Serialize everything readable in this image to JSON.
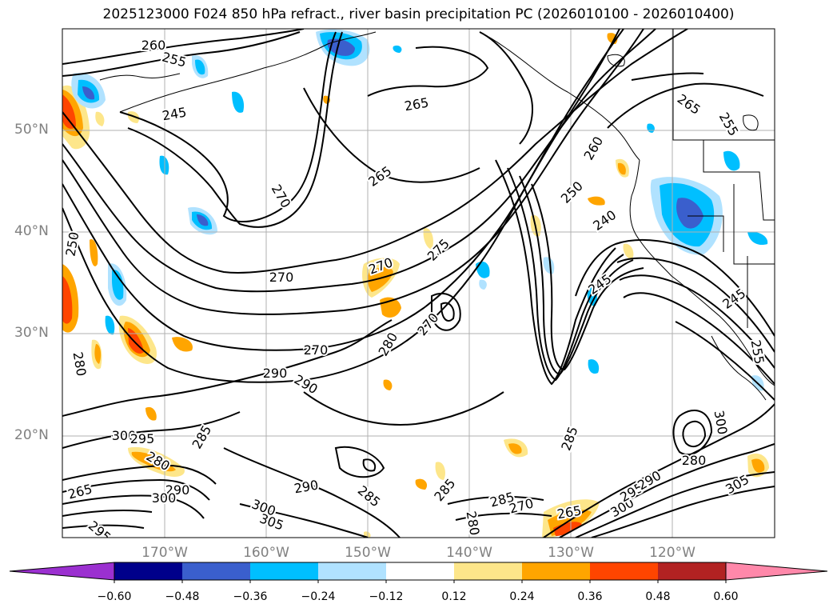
{
  "title": "2025123000 F024 850 hPa refract., river basin precipitation PC (2026010100 - 2026010400)",
  "latitude_labels": [
    "50°N",
    "40°N",
    "30°N",
    "20°N"
  ],
  "longitude_labels": [
    "170°W",
    "160°W",
    "150°W",
    "140°W",
    "130°W",
    "120°W"
  ],
  "contour_labels": [
    "260",
    "255",
    "245",
    "265",
    "265",
    "265",
    "255",
    "270",
    "270",
    "275",
    "270",
    "260",
    "250",
    "240",
    "245",
    "245",
    "255",
    "270",
    "280",
    "290",
    "290",
    "270",
    "280",
    "300",
    "295",
    "285",
    "280",
    "290",
    "300",
    "290",
    "300",
    "305",
    "285",
    "285",
    "280",
    "285",
    "270",
    "265",
    "300",
    "295",
    "290",
    "285",
    "280",
    "300",
    "305",
    "265",
    "295",
    "250"
  ],
  "colorbar": {
    "ticks": [
      "−0.60",
      "−0.48",
      "−0.36",
      "−0.24",
      "−0.12",
      "0.12",
      "0.24",
      "0.36",
      "0.48",
      "0.60"
    ],
    "colors": [
      "#9b30d0",
      "#00008b",
      "#3a5fcd",
      "#00bfff",
      "#b0e2ff",
      "#ffffff",
      "#fde68a",
      "#ffa500",
      "#ff4500",
      "#b22222",
      "#ff88aa"
    ]
  }
}
